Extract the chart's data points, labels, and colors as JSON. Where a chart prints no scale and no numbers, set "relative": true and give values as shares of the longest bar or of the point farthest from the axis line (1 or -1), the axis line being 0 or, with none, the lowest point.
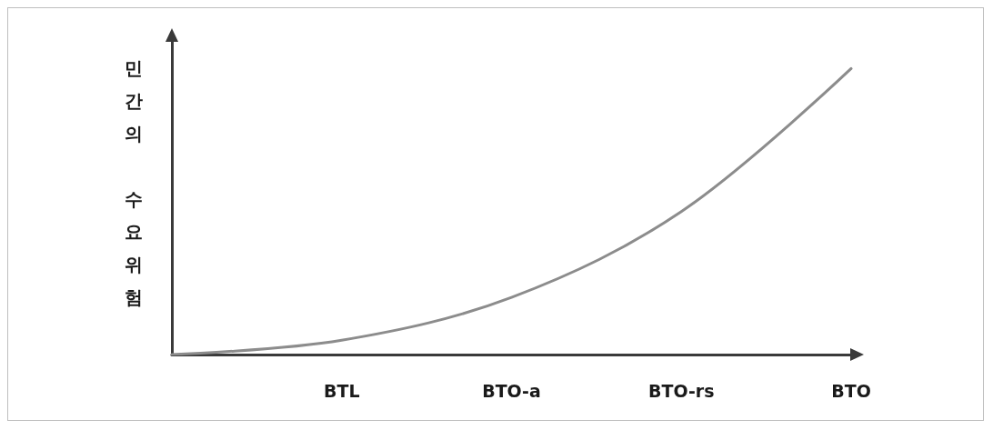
{
  "chart_data": {
    "type": "line",
    "relative": true,
    "ylabel": "민간의 수요위험",
    "categories": [
      null,
      "BTL",
      "BTO-a",
      "BTO-rs",
      "BTO"
    ],
    "series": [
      {
        "color": "#8c8c8c",
        "values": [
          0,
          0.05,
          0.2,
          0.5,
          1
        ]
      }
    ],
    "marker": "none",
    "line_style": "solid",
    "grid": false
  }
}
